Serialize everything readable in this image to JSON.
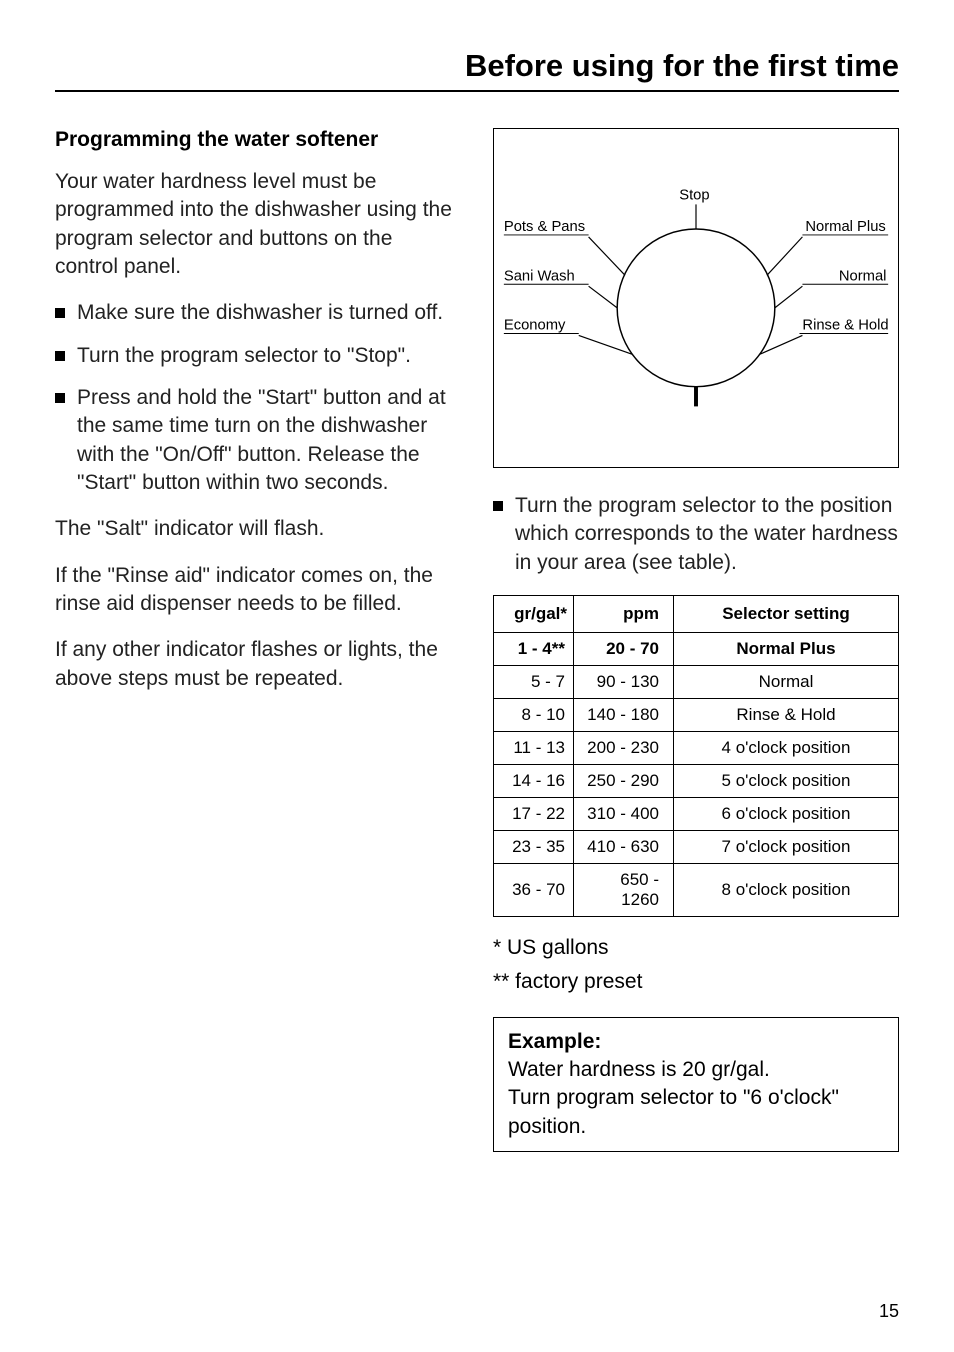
{
  "page_title": "Before using for the first time",
  "left": {
    "subheading": "Programming the water softener",
    "intro": "Your water hardness level must be programmed into the dishwasher using the program selector and buttons on the control panel.",
    "bullets": [
      "Make sure the dishwasher is turned off.",
      "Turn the program selector to \"Stop\".",
      "Press and hold the \"Start\" button and at the same time turn on the dishwasher with the \"On/Off\" button. Release the \"Start\" button within two seconds."
    ],
    "after1": "The \"Salt\" indicator will flash.",
    "after2": "If the \"Rinse aid\" indicator comes on, the rinse aid dispenser needs to be filled.",
    "after3": "If any other indicator flashes or lights, the above steps must be repeated."
  },
  "right": {
    "dial": {
      "labels": {
        "pots_pans": "Pots & Pans",
        "stop": "Stop",
        "normal_plus": "Normal Plus",
        "sani_wash": "Sani Wash",
        "normal": "Normal",
        "economy": "Economy",
        "rinse_hold": "Rinse & Hold"
      },
      "circle_stroke": "#000000",
      "tick_stroke": "#000000"
    },
    "instruction_bullet": "Turn the program selector to the position which corresponds to the water hardness in your area (see table).",
    "table": {
      "headers": {
        "col1": "gr/gal*",
        "col2": "ppm",
        "col3": "Selector setting"
      },
      "rows": [
        {
          "c1": "1 -   4**",
          "c2": "20 -    70",
          "c3": "Normal Plus",
          "bold": true
        },
        {
          "c1": "5 -   7",
          "c2": "90 -  130",
          "c3": "Normal",
          "bold": false
        },
        {
          "c1": "8 - 10",
          "c2": "140 -  180",
          "c3": "Rinse & Hold",
          "bold": false
        },
        {
          "c1": "11 - 13",
          "c2": "200 -  230",
          "c3": "4 o'clock position",
          "bold": false
        },
        {
          "c1": "14 - 16",
          "c2": "250 -  290",
          "c3": "5 o'clock position",
          "bold": false
        },
        {
          "c1": "17 - 22",
          "c2": "310 -  400",
          "c3": "6 o'clock position",
          "bold": false
        },
        {
          "c1": "23 - 35",
          "c2": "410 -  630",
          "c3": "7 o'clock position",
          "bold": false
        },
        {
          "c1": "36 - 70",
          "c2": "650 - 1260",
          "c3": "8 o'clock position",
          "bold": false
        }
      ]
    },
    "footnote1": "*   US gallons",
    "footnote2": "** factory preset",
    "example": {
      "head": "Example:",
      "line1": "Water hardness is 20 gr/gal.",
      "line2": "Turn program selector to \"6 o'clock\" position."
    }
  },
  "page_number": "15"
}
